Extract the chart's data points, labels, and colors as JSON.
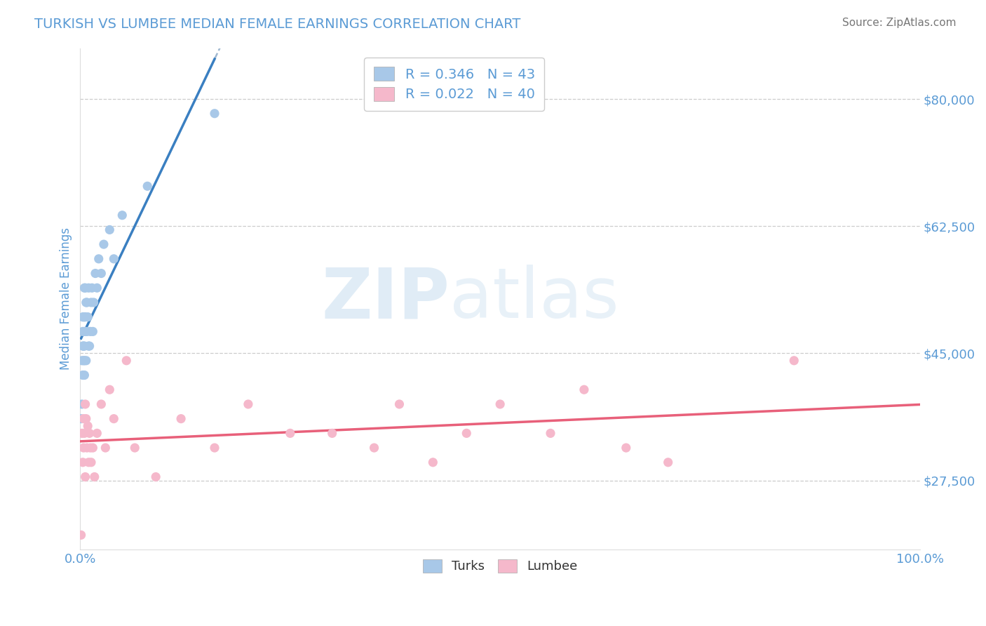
{
  "title": "TURKISH VS LUMBEE MEDIAN FEMALE EARNINGS CORRELATION CHART",
  "source": "Source: ZipAtlas.com",
  "ylabel": "Median Female Earnings",
  "xlim": [
    0.0,
    1.0
  ],
  "ylim": [
    18000,
    87000
  ],
  "yticks": [
    27500,
    45000,
    62500,
    80000
  ],
  "ytick_labels": [
    "$27,500",
    "$45,000",
    "$62,500",
    "$80,000"
  ],
  "xticks": [
    0.0,
    1.0
  ],
  "xtick_labels": [
    "0.0%",
    "100.0%"
  ],
  "turks_R": 0.346,
  "turks_N": 43,
  "lumbee_R": 0.022,
  "lumbee_N": 40,
  "turks_color": "#a8c8e8",
  "lumbee_color": "#f5b8cb",
  "turks_line_color": "#3a7fc1",
  "lumbee_line_color": "#e8607a",
  "turks_line_dash_color": "#a0b8d0",
  "grid_color": "#cccccc",
  "title_color": "#5b9bd5",
  "axis_color": "#5b9bd5",
  "background_color": "#ffffff",
  "watermark_zip": "ZIP",
  "watermark_atlas": "atlas",
  "turks_x": [
    0.001,
    0.002,
    0.002,
    0.003,
    0.003,
    0.003,
    0.003,
    0.004,
    0.004,
    0.004,
    0.004,
    0.005,
    0.005,
    0.005,
    0.005,
    0.005,
    0.005,
    0.006,
    0.006,
    0.006,
    0.007,
    0.007,
    0.008,
    0.008,
    0.009,
    0.01,
    0.01,
    0.011,
    0.012,
    0.013,
    0.014,
    0.015,
    0.016,
    0.018,
    0.02,
    0.022,
    0.025,
    0.028,
    0.035,
    0.04,
    0.05,
    0.08,
    0.16
  ],
  "turks_y": [
    36000,
    38000,
    44000,
    42000,
    46000,
    50000,
    48000,
    42000,
    46000,
    50000,
    44000,
    44000,
    46000,
    50000,
    54000,
    48000,
    42000,
    50000,
    54000,
    48000,
    52000,
    44000,
    52000,
    48000,
    50000,
    54000,
    46000,
    46000,
    48000,
    52000,
    54000,
    48000,
    52000,
    56000,
    54000,
    58000,
    56000,
    60000,
    62000,
    58000,
    64000,
    68000,
    78000
  ],
  "lumbee_x": [
    0.001,
    0.002,
    0.003,
    0.004,
    0.004,
    0.005,
    0.006,
    0.006,
    0.007,
    0.008,
    0.009,
    0.01,
    0.011,
    0.012,
    0.013,
    0.015,
    0.017,
    0.02,
    0.025,
    0.03,
    0.035,
    0.04,
    0.055,
    0.065,
    0.09,
    0.12,
    0.16,
    0.2,
    0.25,
    0.3,
    0.35,
    0.38,
    0.42,
    0.46,
    0.5,
    0.56,
    0.6,
    0.65,
    0.7,
    0.85
  ],
  "lumbee_y": [
    20000,
    34000,
    30000,
    32000,
    36000,
    34000,
    38000,
    28000,
    36000,
    32000,
    35000,
    30000,
    34000,
    32000,
    30000,
    32000,
    28000,
    34000,
    38000,
    32000,
    40000,
    36000,
    44000,
    32000,
    28000,
    36000,
    32000,
    38000,
    34000,
    34000,
    32000,
    38000,
    30000,
    34000,
    38000,
    34000,
    40000,
    32000,
    30000,
    44000
  ]
}
